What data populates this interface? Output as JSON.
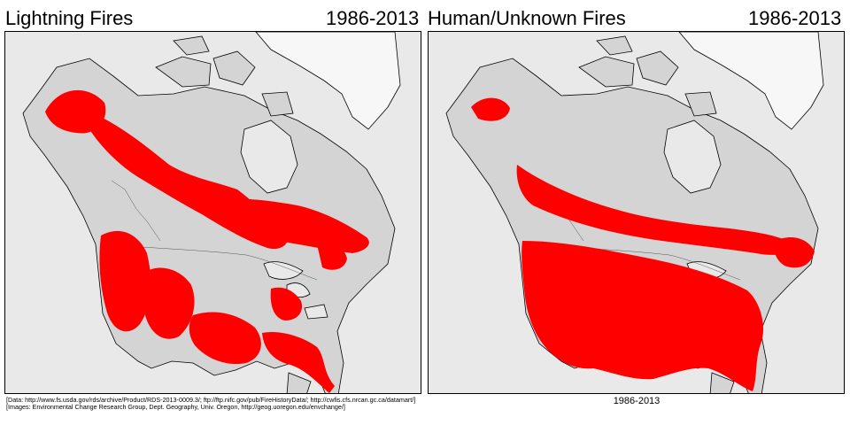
{
  "panels": [
    {
      "title": "Lightning Fires",
      "years": "1986-2013"
    },
    {
      "title": "Human/Unknown Fires",
      "years": "1986-2013"
    }
  ],
  "footnote": {
    "data_line": "[Data: http://www.fs.usda.gov/rds/archive/Product/RDS-2013-0009.3/; ftp://ftp.nifc.gov/pub/FireHistoryData/; http://cwfis.cfs.nrcan.gc.ca/datamart/]",
    "images_line": "[Images: Environmental Change Research Group, Dept. Geography, Univ. Oregon, http://geog.uoregon.edu/envchange/]"
  },
  "caption": "1986-2013",
  "colors": {
    "fire": "#ff0000",
    "land": "#d4d4d4",
    "water": "#e9e9e9",
    "ice": "#f7f7f7",
    "boundary": "#000000"
  }
}
